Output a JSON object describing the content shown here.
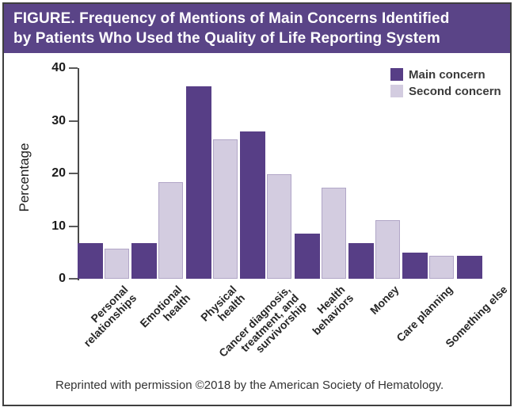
{
  "figure_title": {
    "line1": "FIGURE. Frequency of Mentions of Main Concerns Identified",
    "line2": "by Patients Who Used the Quality of Life Reporting System"
  },
  "footer": {
    "text": "Reprinted with permission ©2018 by the American Society of Hematology."
  },
  "colors": {
    "banner": "#5a4487",
    "main_concern": "#573e86",
    "second_concern": "#d3cce0",
    "frame": "#3f3f3f",
    "axis": "#4a4a4a"
  },
  "chart_data": {
    "type": "bar",
    "title": "Frequency of Mentions of Main Concerns Identified by Patients Who Used the Quality of Life Reporting System",
    "xlabel": "",
    "ylabel": "Percentage",
    "ylim": [
      0,
      40
    ],
    "yticks": [
      0,
      10,
      20,
      30,
      40
    ],
    "grid": false,
    "legend_position": "top-right",
    "categories": [
      "Personal relationships",
      "Emotional health",
      "Physical health",
      "Cancer diagnosis, treatment, and survivorship",
      "Health behaviors",
      "Money",
      "Care planning",
      "Something else"
    ],
    "category_label_lines": [
      [
        "Personal",
        "relationships"
      ],
      [
        "Emotional",
        "health"
      ],
      [
        "Physical",
        "health"
      ],
      [
        "Cancer diagnosis,",
        "treatment, and",
        "survivorship"
      ],
      [
        "Health",
        "behaviors"
      ],
      [
        "Money"
      ],
      [
        "Care planning"
      ],
      [
        "Something else"
      ]
    ],
    "series": [
      {
        "name": "Main concern",
        "color": "#573e86",
        "values": [
          6.8,
          6.8,
          36.5,
          28.0,
          8.6,
          6.8,
          5.0,
          4.4
        ]
      },
      {
        "name": "Second concern",
        "color": "#d3cce0",
        "values": [
          5.7,
          18.3,
          26.4,
          19.8,
          17.3,
          11.2,
          4.4,
          null
        ]
      }
    ]
  }
}
